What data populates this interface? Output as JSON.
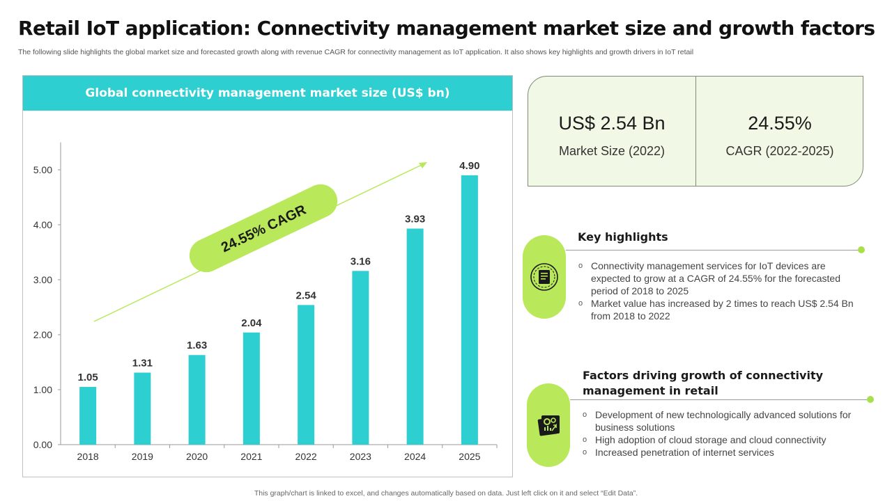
{
  "title": "Retail IoT application: Connectivity management market size and growth factors",
  "subtitle": "The following slide highlights the global market size and forecasted growth along with revenue CAGR for connectivity management as IoT application. It also shows key highlights and growth drivers in IoT retail",
  "chart_data": {
    "type": "bar",
    "title": "Global connectivity management market size (US$ bn)",
    "categories": [
      "2018",
      "2019",
      "2020",
      "2021",
      "2022",
      "2023",
      "2024",
      "2025"
    ],
    "values": [
      1.05,
      1.31,
      1.63,
      2.04,
      2.54,
      3.16,
      3.93,
      4.9
    ],
    "value_labels": [
      "1.05",
      "1.31",
      "1.63",
      "2.04",
      "2.54",
      "3.16",
      "3.93",
      "4.90"
    ],
    "yticks": [
      "0.00",
      "1.00",
      "2.00",
      "3.00",
      "4.00",
      "5.00"
    ],
    "ytick_values": [
      0,
      1,
      2,
      3,
      4,
      5
    ],
    "ylim": [
      0,
      5.5
    ],
    "xlabel": "",
    "ylabel": "",
    "annotation": "24.55% CAGR",
    "bar_color": "#2ecfd1",
    "annotation_color": "#b9e85a",
    "grid": false
  },
  "stats": [
    {
      "value": "US$ 2.54 Bn",
      "label": "Market Size (2022)"
    },
    {
      "value": "24.55%",
      "label": "CAGR (2022-2025)"
    }
  ],
  "highlights": {
    "heading": "Key highlights",
    "icon": "document-report-icon",
    "items": [
      "Connectivity management services for IoT devices are expected to grow at a CAGR of 24.55% for the forecasted period of 2018 to 2025",
      "Market value has increased by 2 times to reach US$ 2.54 Bn from 2018 to 2022"
    ]
  },
  "factors": {
    "heading": "Factors driving growth of connectivity management in retail",
    "icon": "growth-gears-icon",
    "items": [
      "Development of new technologically advanced solutions for business solutions",
      "High adoption of cloud storage and cloud connectivity",
      "Increased penetration of internet services"
    ]
  },
  "footnote": "This graph/chart is linked to excel, and changes automatically based on data. Just left click on it and select “Edit Data”.",
  "colors": {
    "accent_teal": "#2ecfd1",
    "accent_green": "#b9e85a",
    "card_bg": "#f1f9e6"
  }
}
